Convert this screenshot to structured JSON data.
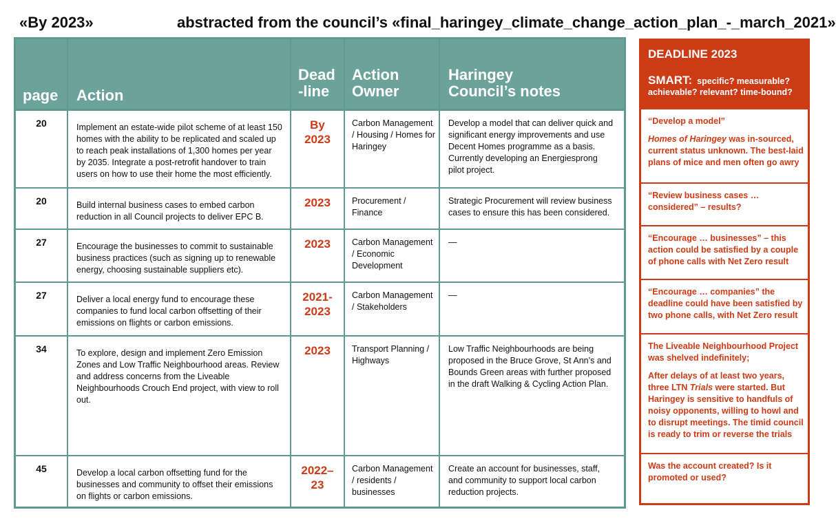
{
  "header": {
    "left": "«By 2023»",
    "right": "abstracted from the council’s «final_haringey_climate_change_action_plan_-_march_2021»"
  },
  "table": {
    "columns": {
      "page": "page",
      "action": "Action",
      "deadline_line1": "Dead",
      "deadline_line2": "-line",
      "owner_line1": "Action",
      "owner_line2": "Owner",
      "notes_line1": "Haringey",
      "notes_line2": "Council’s notes"
    },
    "rows": [
      {
        "page": "20",
        "action": "Implement an estate-wide pilot scheme of at least 150 homes with the ability to be replicated and scaled up to reach peak installations of 1,300 homes per year by 2035. Integrate a post-retrofit handover to train users on how to use their home the most efficiently.",
        "deadline_line1": "By",
        "deadline_line2": "2023",
        "owner": "Carbon Management / Housing / Homes for Haringey",
        "notes": "Develop a model that can deliver quick and significant energy improvements and use Decent Homes programme as a basis. Currently developing an Energiesprong pilot project."
      },
      {
        "page": "20",
        "action": "Build internal business cases to embed carbon reduction in all Council projects to deliver EPC B.",
        "deadline_line1": "2023",
        "deadline_line2": "",
        "owner": "Procurement / Finance",
        "notes": "Strategic Procurement will review business cases to ensure this has been considered."
      },
      {
        "page": "27",
        "action": "Encourage the businesses to commit to sustainable business practices (such as signing up to renewable energy, choosing sustainable suppliers etc).",
        "deadline_line1": "2023",
        "deadline_line2": "",
        "owner": "Carbon Management / Economic Development",
        "notes": "—"
      },
      {
        "page": "27",
        "action": "Deliver a local energy fund to encourage these companies to fund local carbon offsetting of their emissions on flights or carbon emissions.",
        "deadline_line1": "2021-",
        "deadline_line2": "2023",
        "owner": "Carbon Management / Stakeholders",
        "notes": "—"
      },
      {
        "page": "34",
        "action": "To explore, design and implement Zero Emission Zones and Low Traffic Neighbourhood areas. Review and address concerns from the Liveable Neighbourhoods Crouch End project, with view to roll out.",
        "deadline_line1": "2023",
        "deadline_line2": "",
        "owner": "Transport Planning / Highways",
        "notes": "Low Traffic Neighbourhoods are being proposed in the Bruce Grove, St Ann’s and Bounds Green areas with further proposed in the draft Walking & Cycling Action Plan."
      },
      {
        "page": "45",
        "action": "Develop a local carbon offsetting fund for the businesses and community to offset their emissions on flights or carbon emissions.",
        "deadline_line1": "2022–",
        "deadline_line2": "23",
        "owner": "Carbon Management / residents / businesses",
        "notes": "Create an account for businesses, staff, and community to support local carbon reduction projects."
      }
    ]
  },
  "smart": {
    "title": "DEADLINE 2023",
    "smart_label": "SMART:",
    "criteria": "specific? measurable? achievable? relevant? time-bound?",
    "comments": [
      {
        "p1": "“Develop a model”",
        "p2_italic": "Homes of Haringey",
        "p2_rest": " was in-sourced, current status unknown. The best-laid plans of mice and men often go awry"
      },
      {
        "p1": "“Review business cases … considered” – results?"
      },
      {
        "p1": "“Encourage … businesses” – this action could be satisfied by a couple of phone calls with Net Zero result"
      },
      {
        "p1": "“Encourage … companies” the deadline could have been satisfied by two phone calls, with Net Zero result"
      },
      {
        "p1": "The Liveable Neighbourhood Project was shelved indefinitely;",
        "p2_a": "After delays of at least two years, three LTN ",
        "p2_italic": "Trials",
        "p2_b": " were started. But Haringey is sensitive to handfuls of noisy opponents, willing to howl and to disrupt meetings. The timid council is ready to trim or reverse the trials"
      },
      {
        "p1": "Was the account created? Is it promoted or used?"
      }
    ]
  },
  "colors": {
    "table_teal": "#6ba39b",
    "table_border": "#5f9a92",
    "accent_red": "#cc3b16"
  }
}
